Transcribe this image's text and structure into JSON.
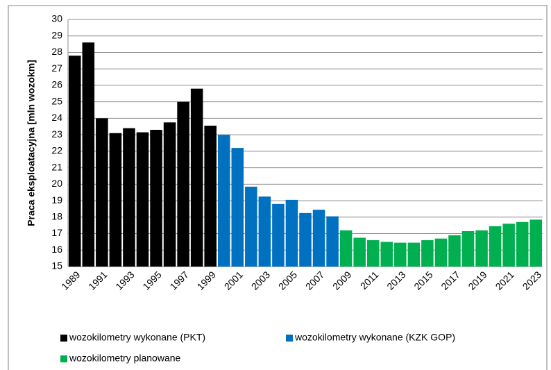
{
  "chart_data": {
    "type": "bar",
    "y_label": "Praca eksploatacyjna  [mln wozokm]",
    "categories": [
      "1989",
      null,
      "1991",
      null,
      "1993",
      null,
      "1995",
      null,
      "1997",
      null,
      "1999",
      null,
      "2001",
      null,
      "2003",
      null,
      "2005",
      null,
      "2007",
      null,
      "2009",
      null,
      "2011",
      null,
      "2013",
      null,
      "2015",
      null,
      "2017",
      null,
      "2019",
      null,
      "2021",
      null,
      "2023"
    ],
    "series": [
      {
        "name": "wozokilometry wykonane (PKT)",
        "color": "#000000",
        "values": [
          27.8,
          28.6,
          24.0,
          23.1,
          23.4,
          23.15,
          23.3,
          23.75,
          25.0,
          25.8,
          23.55,
          null,
          null,
          null,
          null,
          null,
          null,
          null,
          null,
          null,
          null,
          null,
          null,
          null,
          null,
          null,
          null,
          null,
          null,
          null,
          null,
          null,
          null,
          null,
          null
        ]
      },
      {
        "name": "wozokilometry wykonane (KZK GOP)",
        "color": "#0070c0",
        "values": [
          null,
          null,
          null,
          null,
          null,
          null,
          null,
          null,
          null,
          null,
          null,
          23.0,
          22.2,
          19.85,
          19.25,
          18.8,
          19.05,
          18.25,
          18.45,
          18.05,
          null,
          null,
          null,
          null,
          null,
          null,
          null,
          null,
          null,
          null,
          null,
          null,
          null,
          null,
          null
        ]
      },
      {
        "name": "wozokilometry planowane",
        "color": "#00b050",
        "values": [
          null,
          null,
          null,
          null,
          null,
          null,
          null,
          null,
          null,
          null,
          null,
          null,
          null,
          null,
          null,
          null,
          null,
          null,
          null,
          null,
          17.2,
          16.75,
          16.6,
          16.5,
          16.45,
          16.45,
          16.6,
          16.7,
          16.9,
          17.15,
          17.2,
          17.45,
          17.6,
          17.7,
          17.85
        ]
      }
    ],
    "ylim": [
      15,
      30
    ],
    "yticks": [
      15,
      16,
      17,
      18,
      19,
      20,
      21,
      22,
      23,
      24,
      25,
      26,
      27,
      28,
      29,
      30
    ],
    "grid": true,
    "legend": "bottom"
  }
}
